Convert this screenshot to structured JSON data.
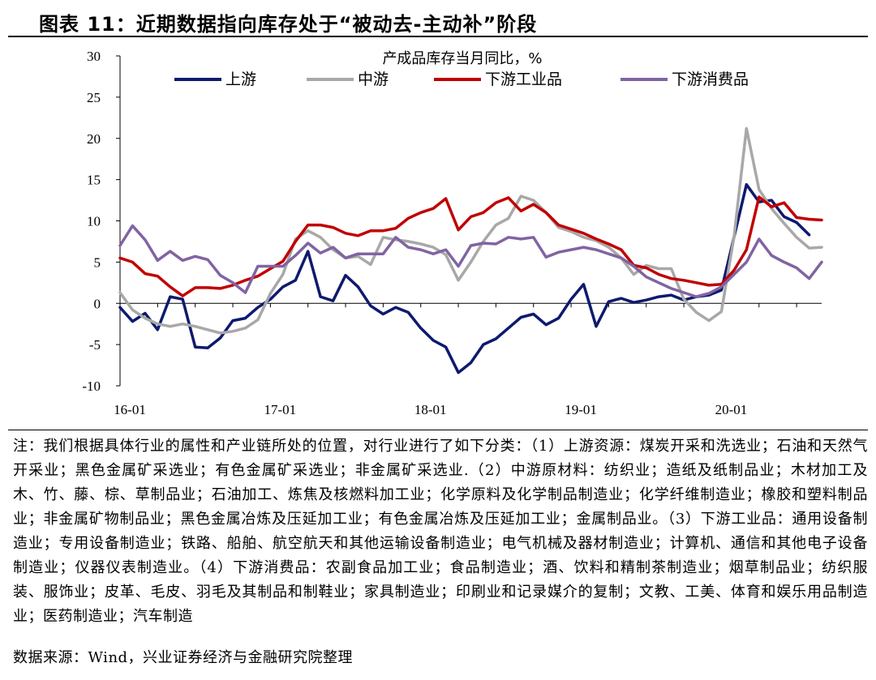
{
  "figure": {
    "title": "图表 11：近期数据指向库存处于“被动去-主动补”阶段",
    "notes": "注：我们根据具体行业的属性和产业链所处的位置，对行业进行了如下分类：（1）上游资源：煤炭开采和洗选业；石油和天然气开采业；黑色金属矿采选业；有色金属矿采选业；非金属矿采选业.（2）中游原材料：纺织业；造纸及纸制品业；木材加工及木、竹、藤、棕、草制品业；石油加工、炼焦及核燃料加工业；化学原料及化学制品制造业；化学纤维制造业；橡胶和塑料制品业；非金属矿物制品业；黑色金属冶炼及压延加工业；有色金属冶炼及压延加工业；金属制品业。（3）下游工业品：通用设备制造业；专用设备制造业；铁路、船舶、航空航天和其他运输设备制造业；电气机械及器材制造业；计算机、通信和其他电子设备制造业；仪器仪表制造业。（4）下游消费品：农副食品加工业；食品制造业；酒、饮料和精制茶制造业；烟草制品业；纺织服装、服饰业；皮革、毛皮、羽毛及其制品和制鞋业；家具制造业；印刷业和记录媒介的复制；文教、工美、体育和娱乐用品制造业；医药制造业；汽车制造",
    "source": "数据来源：Wind，兴业证券经济与金融研究院整理"
  },
  "chart_data": {
    "type": "line",
    "title": "产成品库存当月同比，%",
    "xlabel": "",
    "ylabel": "",
    "ylim": [
      -10,
      30
    ],
    "yticks": [
      -10,
      -5,
      0,
      5,
      10,
      15,
      20,
      25,
      30
    ],
    "xticks": [
      {
        "label": "16-01",
        "index": 0
      },
      {
        "label": "17-01",
        "index": 12
      },
      {
        "label": "18-01",
        "index": 24
      },
      {
        "label": "19-01",
        "index": 36
      },
      {
        "label": "20-01",
        "index": 48
      }
    ],
    "grid": false,
    "legend": "top",
    "x": [
      "16-01",
      "16-02",
      "16-03",
      "16-04",
      "16-05",
      "16-06",
      "16-07",
      "16-08",
      "16-09",
      "16-10",
      "16-11",
      "16-12",
      "17-01",
      "17-02",
      "17-03",
      "17-04",
      "17-05",
      "17-06",
      "17-07",
      "17-08",
      "17-09",
      "17-10",
      "17-11",
      "17-12",
      "18-01",
      "18-02",
      "18-03",
      "18-04",
      "18-05",
      "18-06",
      "18-07",
      "18-08",
      "18-09",
      "18-10",
      "18-11",
      "18-12",
      "19-01",
      "19-02",
      "19-03",
      "19-04",
      "19-05",
      "19-06",
      "19-07",
      "19-08",
      "19-09",
      "19-10",
      "19-11",
      "19-12",
      "20-01",
      "20-02",
      "20-03",
      "20-04",
      "20-05",
      "20-06",
      "20-07",
      "20-08",
      "20-09"
    ],
    "series": [
      {
        "name": "上游",
        "color": "#0d1a6e",
        "values": [
          -0.5,
          -2.2,
          -1.2,
          -3.2,
          0.8,
          0.5,
          -5.3,
          -5.4,
          -4.2,
          -2.1,
          -1.8,
          -0.5,
          0.5,
          2,
          2.8,
          6.3,
          0.8,
          0.3,
          3.4,
          2,
          -0.3,
          -1.3,
          -0.5,
          -1.1,
          -3,
          -4.5,
          -5.3,
          -8.4,
          -7.2,
          -5,
          -4.3,
          -3,
          -1.7,
          -1.3,
          -2.6,
          -1.8,
          0.5,
          2.3,
          -2.8,
          0.2,
          0.6,
          0.1,
          0.4,
          0.8,
          1,
          0.4,
          0.8,
          1,
          1.6,
          8,
          14.4,
          12.3,
          12.5,
          10.5,
          9.8,
          8.3,
          null
        ]
      },
      {
        "name": "中游",
        "color": "#a8a8a8",
        "values": [
          1.3,
          -0.8,
          -1.8,
          -2.5,
          -2.8,
          -2.5,
          -2.8,
          -3.2,
          -3.6,
          -3.4,
          -3,
          -2,
          1.2,
          3.5,
          7.8,
          8.8,
          8,
          6.5,
          5.5,
          5.7,
          4.7,
          8,
          7.7,
          7.5,
          7.2,
          6.8,
          5.9,
          2.8,
          5,
          7.5,
          9.5,
          10.3,
          13,
          12.5,
          11,
          9.2,
          8.7,
          8,
          7.6,
          6.8,
          5.5,
          3.5,
          4.6,
          4.2,
          4.2,
          0.5,
          -1.1,
          -2.1,
          -1,
          8,
          21.2,
          13.8,
          11.5,
          9.7,
          8,
          6.7,
          6.8
        ]
      },
      {
        "name": "下游工业品",
        "color": "#c00000",
        "values": [
          5.5,
          5,
          3.6,
          3.3,
          2,
          0.9,
          1.9,
          1.9,
          1.8,
          2.2,
          2.8,
          3.3,
          4.2,
          5.1,
          7.5,
          9.5,
          9.5,
          9.2,
          8.5,
          8.2,
          8.8,
          8.8,
          9.1,
          10.3,
          11,
          11.5,
          12.7,
          8.9,
          10.5,
          11,
          12.2,
          12.8,
          11.2,
          12,
          11,
          9.5,
          9,
          8.5,
          7.8,
          7.2,
          6.5,
          4.6,
          4.3,
          3.5,
          3,
          2.8,
          2.5,
          2.2,
          2.3,
          4,
          6.5,
          12.9,
          11.7,
          12.2,
          10.4,
          10.2,
          10.1
        ]
      },
      {
        "name": "下游消费品",
        "color": "#8064a2",
        "values": [
          7,
          9.4,
          7.7,
          5.2,
          6.3,
          5.2,
          5.7,
          5.3,
          3.4,
          2.5,
          1.3,
          4.5,
          4.5,
          4.5,
          5.8,
          7.3,
          6.1,
          6.8,
          5.5,
          6,
          6,
          6,
          8,
          6.8,
          6.5,
          6,
          6.5,
          4.5,
          7,
          7.3,
          7.2,
          8,
          7.8,
          8,
          5.6,
          6.2,
          6.5,
          6.8,
          6.5,
          6,
          5.5,
          4.5,
          3.2,
          2.5,
          1.8,
          1.3,
          0.8,
          1.2,
          2,
          3.5,
          5,
          7.8,
          5.8,
          5,
          4.3,
          3,
          5
        ]
      }
    ]
  }
}
